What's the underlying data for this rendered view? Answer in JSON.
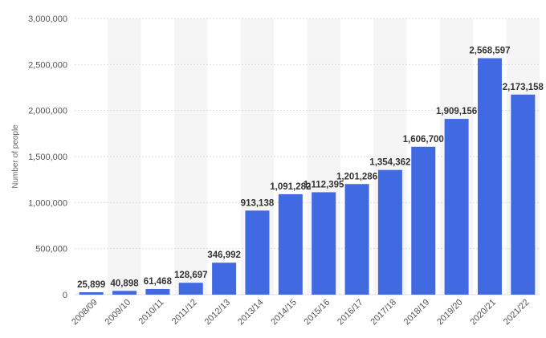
{
  "chart_data": {
    "type": "bar",
    "categories": [
      "2008/09",
      "2009/10",
      "2010/11",
      "2011/12",
      "2012/13",
      "2013/14",
      "2014/15",
      "2015/16",
      "2016/17",
      "2017/18",
      "2018/19",
      "2019/20",
      "2020/21",
      "2021/22"
    ],
    "values": [
      25899,
      40898,
      61468,
      128697,
      346992,
      913138,
      1091282,
      1112395,
      1201286,
      1354362,
      1606700,
      1909156,
      2568597,
      2173158
    ],
    "data_labels": [
      "25,899",
      "40,898",
      "61,468",
      "128,697",
      "346,992",
      "913,138",
      "1,091,282",
      "1,112,395",
      "1,201,286",
      "1,354,362",
      "1,606,700",
      "1,909,156",
      "2,568,597",
      "2,173,158"
    ],
    "ylabel": "Number of people",
    "xlabel": "",
    "ylim": [
      0,
      3000000
    ],
    "y_ticks": [
      0,
      500000,
      1000000,
      1500000,
      2000000,
      2500000,
      3000000
    ],
    "y_tick_labels": [
      "0",
      "500,000",
      "1,000,000",
      "1,500,000",
      "2,000,000",
      "2,500,000",
      "3,000,000"
    ],
    "grid": true,
    "colors": {
      "bar": "#4169e1",
      "grid": "#dddddd",
      "band": "#f5f5f5"
    }
  }
}
